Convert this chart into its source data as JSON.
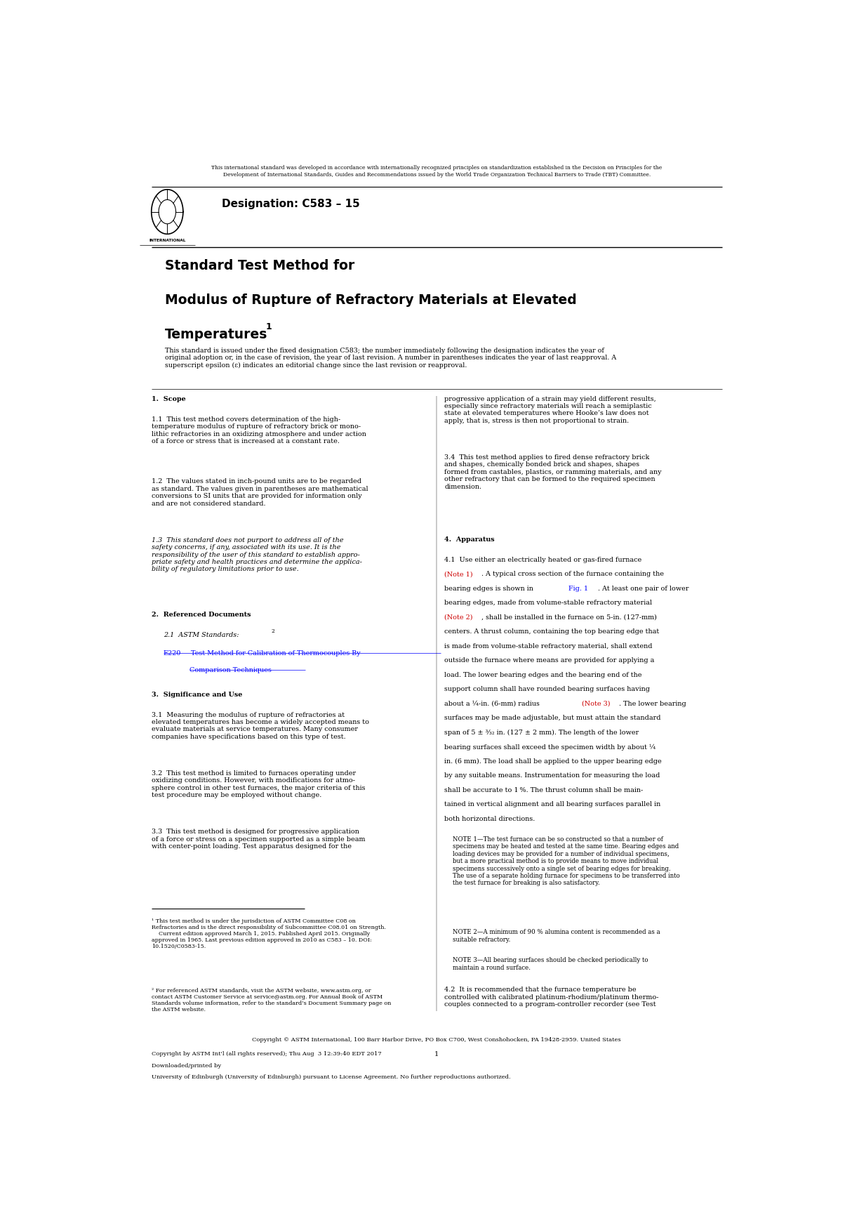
{
  "page_width": 12.14,
  "page_height": 17.19,
  "background_color": "#ffffff",
  "top_notice": "This international standard was developed in accordance with internationally recognized principles on standardization established in the Decision on Principles for the\nDevelopment of International Standards, Guides and Recommendations issued by the World Trade Organization Technical Barriers to Trade (TBT) Committee.",
  "designation": "Designation: C583 – 15",
  "international_label": "INTERNATIONAL",
  "title_line1": "Standard Test Method for",
  "title_line2": "Modulus of Rupture of Refractory Materials at Elevated",
  "title_line3": "Temperatures",
  "title_superscript": "1",
  "fixed_designation_text": "This standard is issued under the fixed designation C583; the number immediately following the designation indicates the year of\noriginal adoption or, in the case of revision, the year of last revision. A number in parentheses indicates the year of last reapproval. A\nsuperscript epsilon (ε) indicates an editorial change since the last revision or reapproval.",
  "section1_head": "1.  Scope",
  "section2_head": "2.  Referenced Documents",
  "section3_head": "3.  Significance and Use",
  "section4_head": "4.  Apparatus",
  "link_color": "#0000FF",
  "note1_inline_color": "#CC0000",
  "fig1_inline_color": "#0000FF",
  "bottom_copyright": "Copyright © ASTM International, 100 Barr Harbor Drive, PO Box C700, West Conshohocken, PA 19428-2959. United States",
  "bottom_line2": "Copyright by ASTM Int'l (all rights reserved); Thu Aug  3 12:39:40 EDT 2017",
  "bottom_line3": "Downloaded/printed by",
  "bottom_line4": "University of Edinburgh (University of Edinburgh) pursuant to License Agreement. No further reproductions authorized.",
  "bottom_page_num": "1"
}
